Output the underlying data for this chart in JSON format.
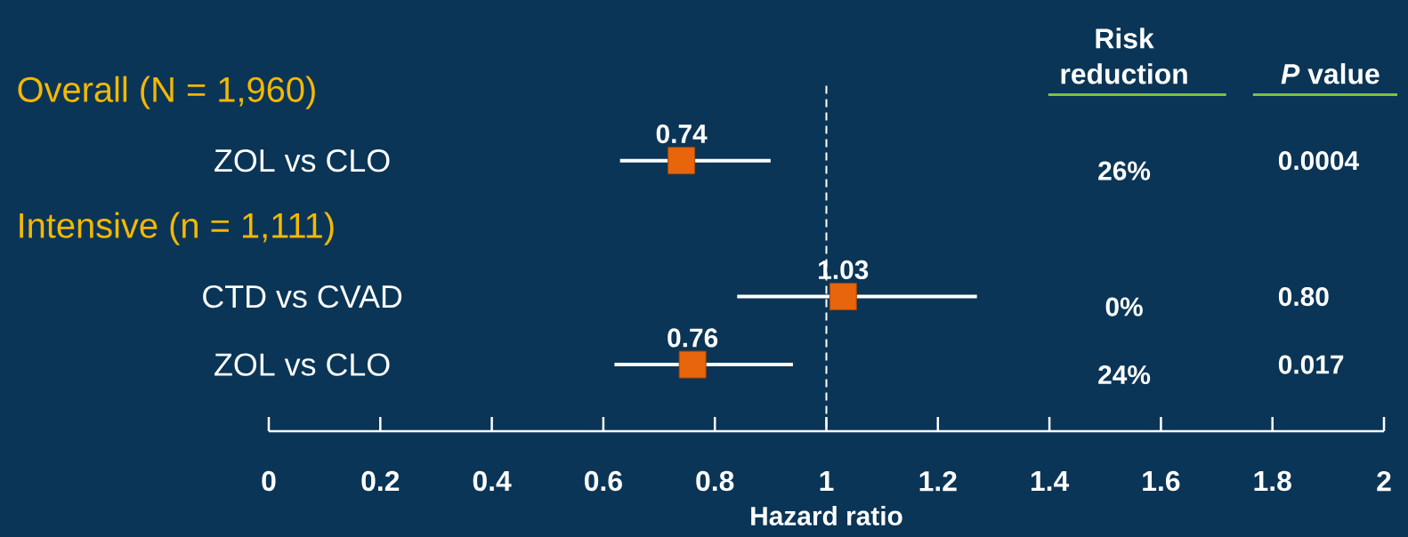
{
  "chart_data": {
    "type": "scatter",
    "orientation": "horizontal",
    "categories": [
      "Overall (N = 1,960)",
      "ZOL vs CLO",
      "Intensive (n = 1,111)",
      "CTD vs CVAD",
      "ZOL vs CLO"
    ],
    "values": [
      null,
      0.74,
      null,
      1.03,
      0.76
    ],
    "errors": [
      null,
      [
        0.63,
        0.9
      ],
      null,
      [
        0.84,
        1.27
      ],
      [
        0.62,
        0.94
      ]
    ],
    "color": "#e8650c",
    "marker": "square",
    "data_labels": true,
    "xlabel": "Hazard ratio",
    "xlim": [
      0,
      2
    ],
    "xticks": [
      0,
      0.2,
      0.4,
      0.6,
      0.8,
      1,
      1.2,
      1.4,
      1.6,
      1.8,
      2
    ],
    "ref_lines": [
      {
        "axis": "x",
        "value": 1,
        "line_style": "dashed",
        "color": "#ffffff"
      }
    ],
    "annotations": [
      "Risk reduction",
      "*P* value",
      "26%",
      "0.0004",
      "0%",
      "0.80",
      "24%",
      "0.017"
    ]
  }
}
